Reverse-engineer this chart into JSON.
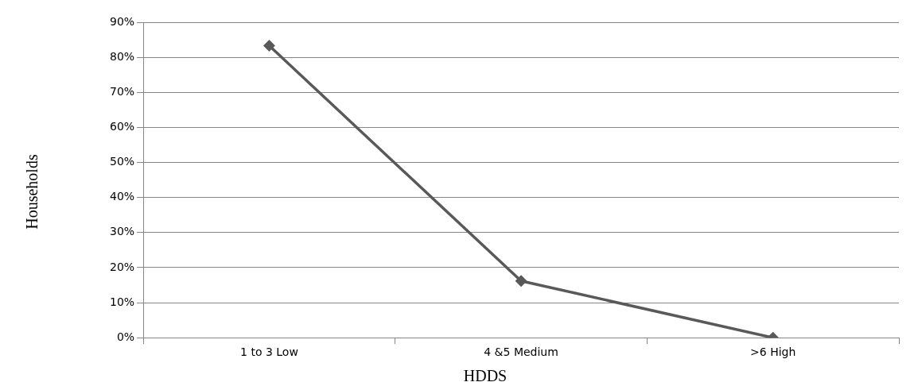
{
  "chart_data": {
    "type": "line",
    "xlabel": "HDDS",
    "ylabel": "Households",
    "categories": [
      "1 to 3 Low",
      "4 &5 Medium",
      ">6 High"
    ],
    "series": [
      {
        "color": "#595959",
        "values": [
          83.3,
          16.2,
          0
        ]
      }
    ],
    "ylim": [
      0,
      90
    ],
    "yticks": [
      {
        "value": 0,
        "label": "0%"
      },
      {
        "value": 10,
        "label": "10%"
      },
      {
        "value": 20,
        "label": "20%"
      },
      {
        "value": 30,
        "label": "30%"
      },
      {
        "value": 40,
        "label": "40%"
      },
      {
        "value": 50,
        "label": "50%"
      },
      {
        "value": 60,
        "label": "60%"
      },
      {
        "value": 70,
        "label": "70%"
      },
      {
        "value": 80,
        "label": "80%"
      },
      {
        "value": 90,
        "label": "90%"
      }
    ],
    "grid": "y",
    "marker": "diamond",
    "line_style": "solid",
    "legend": false
  }
}
